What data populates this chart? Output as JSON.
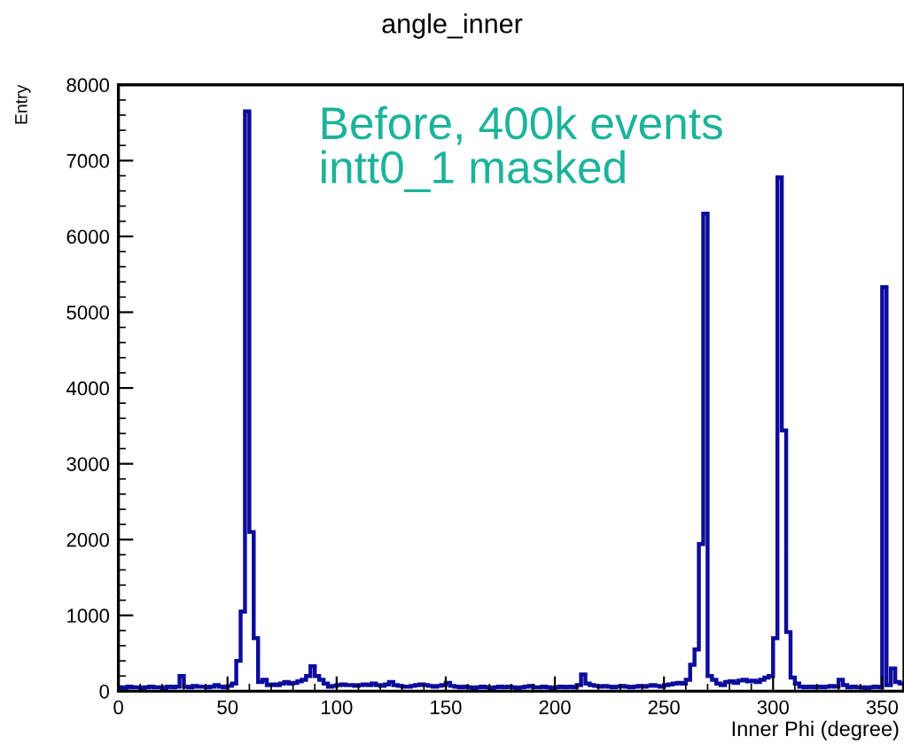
{
  "chart_data": {
    "type": "histogram",
    "title": "angle_inner",
    "xlabel": "Inner Phi (degree)",
    "ylabel": "Entry",
    "annotations": [
      "Before, 400k events\nintt0_1 masked"
    ],
    "color": "#0c0c9c",
    "bins": [
      0,
      2,
      4,
      6,
      8,
      10,
      12,
      14,
      16,
      18,
      20,
      22,
      24,
      26,
      28,
      30,
      32,
      34,
      36,
      38,
      40,
      42,
      44,
      46,
      48,
      50,
      52,
      54,
      56,
      58,
      60,
      62,
      64,
      66,
      68,
      70,
      72,
      74,
      76,
      78,
      80,
      82,
      84,
      86,
      88,
      90,
      92,
      94,
      96,
      98,
      100,
      102,
      104,
      106,
      108,
      110,
      112,
      114,
      116,
      118,
      120,
      122,
      124,
      126,
      128,
      130,
      132,
      134,
      136,
      138,
      140,
      142,
      144,
      146,
      148,
      150,
      152,
      154,
      156,
      158,
      160,
      162,
      164,
      166,
      168,
      170,
      172,
      174,
      176,
      178,
      180,
      182,
      184,
      186,
      188,
      190,
      192,
      194,
      196,
      198,
      200,
      202,
      204,
      206,
      208,
      210,
      212,
      214,
      216,
      218,
      220,
      222,
      224,
      226,
      228,
      230,
      232,
      234,
      236,
      238,
      240,
      242,
      244,
      246,
      248,
      250,
      252,
      254,
      256,
      258,
      260,
      262,
      264,
      266,
      268,
      270,
      272,
      274,
      276,
      278,
      280,
      282,
      284,
      286,
      288,
      290,
      292,
      294,
      296,
      298,
      300,
      302,
      304,
      306,
      308,
      310,
      312,
      314,
      316,
      318,
      320,
      322,
      324,
      326,
      328,
      330,
      332,
      334,
      336,
      338,
      340,
      342,
      344,
      346,
      348,
      350,
      352,
      354,
      356,
      358,
      360
    ],
    "values": [
      50,
      40,
      60,
      50,
      50,
      40,
      50,
      60,
      50,
      50,
      40,
      60,
      50,
      60,
      200,
      60,
      50,
      70,
      60,
      60,
      50,
      60,
      80,
      60,
      50,
      70,
      100,
      400,
      1050,
      7650,
      2100,
      700,
      120,
      150,
      80,
      90,
      80,
      100,
      120,
      100,
      110,
      130,
      150,
      200,
      330,
      200,
      150,
      100,
      60,
      70,
      80,
      90,
      80,
      80,
      70,
      80,
      90,
      80,
      100,
      80,
      70,
      90,
      120,
      80,
      70,
      60,
      60,
      70,
      80,
      90,
      80,
      70,
      60,
      70,
      80,
      110,
      70,
      60,
      50,
      60,
      50,
      40,
      50,
      60,
      50,
      40,
      50,
      60,
      50,
      60,
      50,
      40,
      50,
      60,
      70,
      50,
      50,
      60,
      50,
      40,
      50,
      60,
      50,
      60,
      50,
      80,
      220,
      100,
      80,
      70,
      60,
      70,
      60,
      50,
      60,
      70,
      60,
      50,
      60,
      70,
      60,
      70,
      80,
      70,
      60,
      80,
      90,
      100,
      110,
      100,
      150,
      350,
      550,
      1940,
      6300,
      200,
      150,
      100,
      80,
      120,
      130,
      110,
      140,
      150,
      130,
      140,
      120,
      150,
      180,
      200,
      700,
      6780,
      3440,
      780,
      180,
      100,
      60,
      50,
      60,
      50,
      60,
      50,
      60,
      70,
      60,
      150,
      80,
      50,
      60,
      50,
      50,
      40,
      50,
      60,
      50,
      5330,
      80,
      300,
      120,
      100
    ],
    "xlim": [
      0,
      360
    ],
    "xticks": [
      0,
      50,
      100,
      150,
      200,
      250,
      300,
      350
    ],
    "ylim": [
      0,
      8000
    ],
    "yticks": [
      0,
      1000,
      2000,
      3000,
      4000,
      5000,
      6000,
      7000,
      8000
    ],
    "grid": false,
    "legend": false
  }
}
